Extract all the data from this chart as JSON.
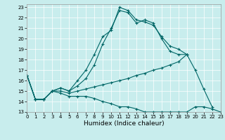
{
  "xlabel": "Humidex (Indice chaleur)",
  "bg_color": "#c8eded",
  "line_color": "#006666",
  "grid_color": "#b0d8d8",
  "xlim": [
    0,
    23
  ],
  "ylim": [
    13,
    23.3
  ],
  "yticks": [
    13,
    14,
    15,
    16,
    17,
    18,
    19,
    20,
    21,
    22,
    23
  ],
  "xticks": [
    0,
    1,
    2,
    3,
    4,
    5,
    6,
    7,
    8,
    9,
    10,
    11,
    12,
    13,
    14,
    15,
    16,
    17,
    18,
    19,
    20,
    21,
    22,
    23
  ],
  "lines": [
    {
      "x": [
        0,
        1,
        2,
        3,
        4,
        5,
        6,
        7,
        8,
        9,
        10,
        11,
        12,
        13,
        14,
        15,
        16,
        17,
        18,
        19
      ],
      "y": [
        16.5,
        14.2,
        14.2,
        15.0,
        15.3,
        15.0,
        16.0,
        17.0,
        18.5,
        20.2,
        20.8,
        23.0,
        22.7,
        21.8,
        21.6,
        21.3,
        20.2,
        19.3,
        19.0,
        18.5
      ]
    },
    {
      "x": [
        0,
        1,
        2,
        3,
        4,
        5,
        6,
        7,
        8,
        9,
        10,
        11,
        12,
        13,
        14,
        15,
        16,
        17,
        18,
        19
      ],
      "y": [
        16.5,
        14.2,
        14.2,
        15.0,
        15.3,
        15.0,
        15.5,
        16.2,
        17.5,
        19.5,
        21.0,
        22.7,
        22.5,
        21.5,
        21.8,
        21.5,
        20.0,
        18.8,
        18.5,
        18.5
      ]
    },
    {
      "x": [
        0,
        1,
        2,
        3,
        4,
        5,
        6,
        7,
        8,
        9,
        10,
        11,
        12,
        13,
        14,
        15,
        16,
        17,
        18,
        19,
        20,
        21,
        22
      ],
      "y": [
        16.5,
        14.2,
        14.2,
        15.0,
        15.0,
        14.8,
        15.0,
        15.2,
        15.4,
        15.6,
        15.8,
        16.0,
        16.2,
        16.5,
        16.7,
        17.0,
        17.2,
        17.5,
        17.8,
        18.5,
        17.0,
        15.2,
        13.5
      ]
    },
    {
      "x": [
        0,
        1,
        2,
        3,
        4,
        5,
        6,
        7,
        8,
        9,
        10,
        11,
        12,
        13,
        14,
        15,
        16,
        17,
        18,
        19,
        20,
        21,
        22,
        23
      ],
      "y": [
        16.5,
        14.2,
        14.2,
        15.0,
        14.8,
        14.5,
        14.5,
        14.5,
        14.3,
        14.0,
        13.8,
        13.5,
        13.5,
        13.3,
        13.0,
        13.0,
        13.0,
        13.0,
        13.0,
        13.0,
        13.5,
        13.5,
        13.3,
        13.0
      ]
    }
  ]
}
